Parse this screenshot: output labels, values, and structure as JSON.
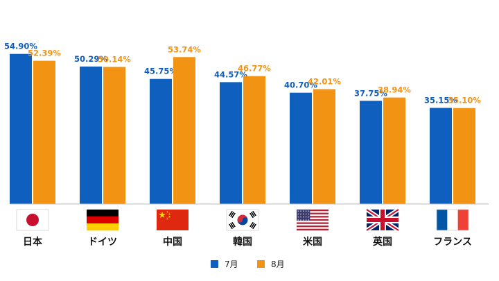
{
  "chart_data": {
    "type": "bar",
    "categories": [
      "日本",
      "ドイツ",
      "中国",
      "韓国",
      "米国",
      "英国",
      "フランス"
    ],
    "flags": [
      "flag-japan",
      "flag-germany",
      "flag-china",
      "flag-korea",
      "flag-usa",
      "flag-uk",
      "flag-france"
    ],
    "series": [
      {
        "name": "7月",
        "color": "#0f5fbf",
        "values": [
          54.9,
          50.29,
          45.75,
          44.57,
          40.7,
          37.75,
          35.15
        ],
        "labels": [
          "54.90%",
          "50.29%",
          "45.75%",
          "44.57%",
          "40.70%",
          "37.75%",
          "35.15%"
        ]
      },
      {
        "name": "8月",
        "color": "#f39314",
        "values": [
          52.39,
          50.14,
          53.74,
          46.77,
          42.01,
          38.94,
          35.1
        ],
        "labels": [
          "52.39%",
          "50.14%",
          "53.74%",
          "46.77%",
          "42.01%",
          "38.94%",
          "35.10%"
        ]
      }
    ],
    "title": "",
    "xlabel": "",
    "ylabel": "",
    "ylim": [
      0,
      60
    ],
    "grid": false,
    "legend_position": "bottom-center"
  }
}
